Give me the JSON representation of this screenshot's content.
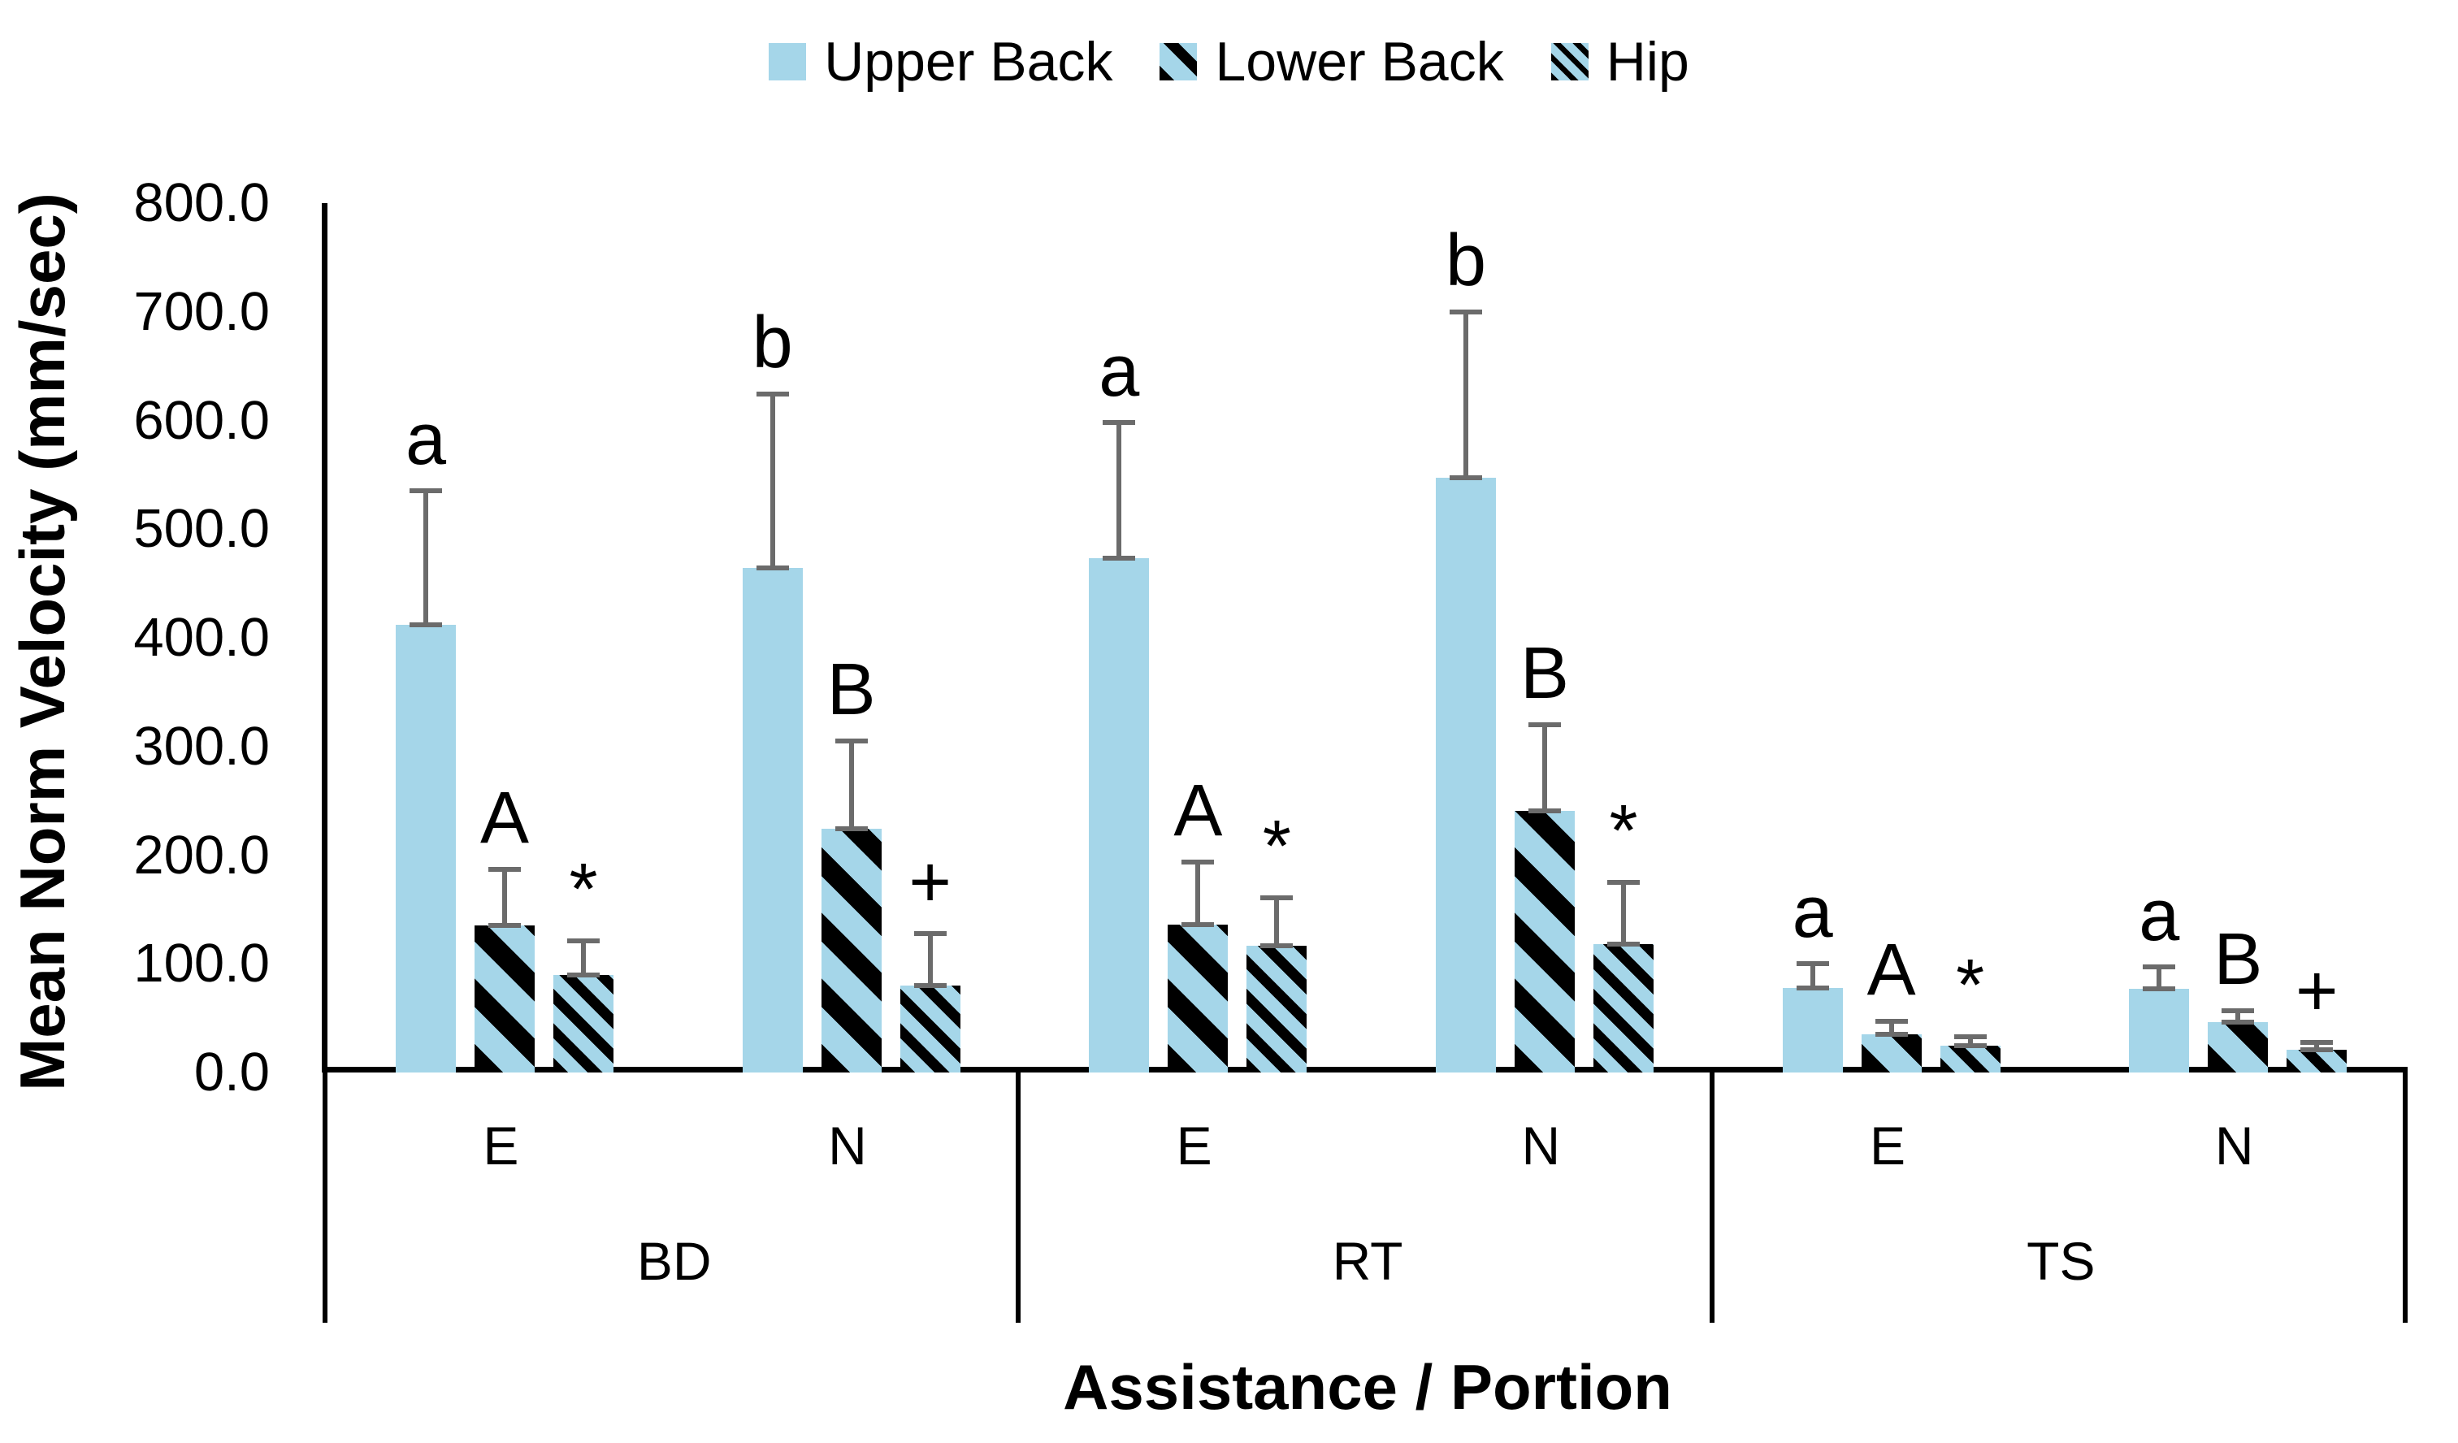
{
  "legend": {
    "position": "top-center"
  },
  "chart_data": {
    "type": "bar",
    "title": "",
    "ylabel": "Mean Norm Velocity (mm/sec)",
    "xlabel": "Assistance / Portion",
    "ylim": [
      0,
      800
    ],
    "ytick_step": 100,
    "ytick_labels": [
      "800.0",
      "700.0",
      "600.0",
      "500.0",
      "400.0",
      "300.0",
      "200.0",
      "100.0",
      "0.0"
    ],
    "grid": "off",
    "legend_position": "top",
    "group_labels": [
      "BD",
      "RT",
      "TS"
    ],
    "subgroup_labels": [
      "E",
      "N"
    ],
    "categories": [
      "BD-E",
      "BD-N",
      "RT-E",
      "RT-N",
      "TS-E",
      "TS-N"
    ],
    "series": [
      {
        "name": "Upper Back",
        "pattern": "solid",
        "values": [
          412,
          464,
          473,
          547,
          78,
          77
        ],
        "errors": [
          123,
          160,
          125,
          153,
          22,
          20
        ],
        "annotations": [
          "a",
          "b",
          "a",
          "b",
          "a",
          "a"
        ]
      },
      {
        "name": "Lower Back",
        "pattern": "thick-diagonal-stripes",
        "values": [
          135,
          224,
          136,
          241,
          35,
          46
        ],
        "errors": [
          52,
          81,
          58,
          79,
          12,
          11
        ],
        "annotations": [
          "A",
          "B",
          "A",
          "B",
          "A",
          "B"
        ]
      },
      {
        "name": "Hip",
        "pattern": "thin-diagonal-stripes",
        "values": [
          90,
          80,
          117,
          118,
          25,
          21
        ],
        "errors": [
          31,
          48,
          44,
          57,
          8,
          7
        ],
        "annotations": [
          "*",
          "+",
          "*",
          "*",
          "*",
          "+"
        ]
      }
    ],
    "colors": {
      "bar_fill": "#A5D6E9",
      "stripe": "#000000",
      "error_bar": "#6B6B6B",
      "axis": "#000000",
      "text": "#000000"
    }
  }
}
